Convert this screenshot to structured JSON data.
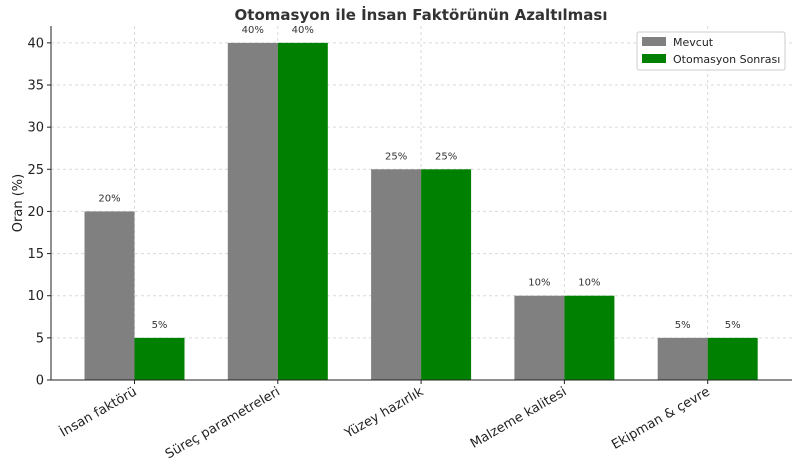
{
  "chart_data": {
    "type": "bar",
    "title": "Otomasyon ile İnsan Faktörünün Azaltılması",
    "xlabel": "",
    "ylabel": "Oran (%)",
    "ylim": [
      0,
      42
    ],
    "yticks": [
      0,
      5,
      10,
      15,
      20,
      25,
      30,
      35,
      40
    ],
    "grid": true,
    "legend_position": "top-right",
    "categories": [
      "İnsan faktörü",
      "Süreç parametreleri",
      "Yüzey hazırlık",
      "Malzeme kalitesi",
      "Ekipman & çevre"
    ],
    "series": [
      {
        "name": "Mevcut",
        "color": "#808080",
        "values": [
          20,
          40,
          25,
          10,
          5
        ],
        "labels": [
          "20%",
          "40%",
          "25%",
          "10%",
          "5%"
        ]
      },
      {
        "name": "Otomasyon Sonrası",
        "color": "#008000",
        "values": [
          5,
          40,
          25,
          10,
          5
        ],
        "labels": [
          "5%",
          "40%",
          "25%",
          "10%",
          "5%"
        ]
      }
    ]
  }
}
